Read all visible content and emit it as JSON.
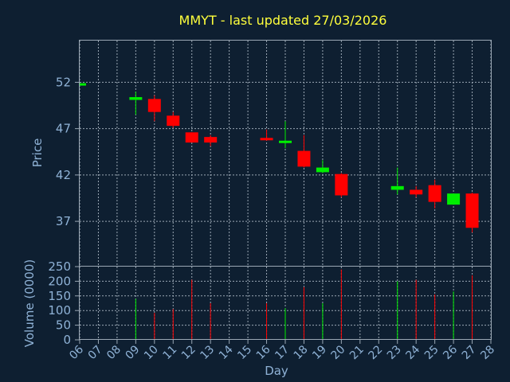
{
  "title": "MMYT - last updated 27/03/2026",
  "colors": {
    "background": "#0e1f31",
    "title": "#ffff3c",
    "axis_text": "#8fb2d6",
    "grid": "#9aa7b4",
    "up": "#00ee00",
    "down": "#ff0000"
  },
  "chart_data": [
    {
      "type": "candlestick",
      "ylabel": "Price",
      "ylim": [
        32.2,
        56.5
      ],
      "yticks": [
        37,
        42,
        47,
        52
      ],
      "grid": true,
      "candles": [
        {
          "day": "06",
          "open": 51.9,
          "high": 51.9,
          "low": 51.9,
          "close": 51.9
        },
        {
          "day": "09",
          "open": 50.1,
          "high": 51.0,
          "low": 48.5,
          "close": 50.4
        },
        {
          "day": "10",
          "open": 50.2,
          "high": 50.6,
          "low": 47.8,
          "close": 48.8
        },
        {
          "day": "11",
          "open": 48.4,
          "high": 48.8,
          "low": 47.1,
          "close": 47.3
        },
        {
          "day": "12",
          "open": 46.6,
          "high": 46.6,
          "low": 45.5,
          "close": 45.5
        },
        {
          "day": "13",
          "open": 46.1,
          "high": 46.3,
          "low": 45.1,
          "close": 45.5
        },
        {
          "day": "16",
          "open": 46.0,
          "high": 46.9,
          "low": 45.7,
          "close": 45.8
        },
        {
          "day": "17",
          "open": 45.6,
          "high": 47.8,
          "low": 44.9,
          "close": 45.7
        },
        {
          "day": "18",
          "open": 44.6,
          "high": 46.3,
          "low": 42.8,
          "close": 42.9
        },
        {
          "day": "19",
          "open": 42.3,
          "high": 43.6,
          "low": 42.2,
          "close": 42.8
        },
        {
          "day": "20",
          "open": 42.1,
          "high": 42.2,
          "low": 39.6,
          "close": 39.8
        },
        {
          "day": "23",
          "open": 40.4,
          "high": 42.8,
          "low": 39.9,
          "close": 40.8
        },
        {
          "day": "24",
          "open": 40.4,
          "high": 40.8,
          "low": 39.6,
          "close": 39.9
        },
        {
          "day": "25",
          "open": 40.9,
          "high": 41.5,
          "low": 38.4,
          "close": 39.1
        },
        {
          "day": "26",
          "open": 38.8,
          "high": 40.0,
          "low": 38.8,
          "close": 40.0
        },
        {
          "day": "27",
          "open": 40.0,
          "high": 40.1,
          "low": 35.8,
          "close": 36.3
        }
      ]
    },
    {
      "type": "bar",
      "ylabel": "Volume (0000)",
      "ylim": [
        0,
        250
      ],
      "yticks": [
        0,
        50,
        100,
        150,
        200,
        250
      ],
      "grid": true,
      "values": [
        {
          "day": "09",
          "value": 140,
          "up": true
        },
        {
          "day": "10",
          "value": 92,
          "up": false
        },
        {
          "day": "11",
          "value": 105,
          "up": false
        },
        {
          "day": "12",
          "value": 205,
          "up": false
        },
        {
          "day": "13",
          "value": 125,
          "up": false
        },
        {
          "day": "16",
          "value": 125,
          "up": false
        },
        {
          "day": "17",
          "value": 108,
          "up": true
        },
        {
          "day": "18",
          "value": 180,
          "up": false
        },
        {
          "day": "19",
          "value": 125,
          "up": true
        },
        {
          "day": "20",
          "value": 240,
          "up": false
        },
        {
          "day": "23",
          "value": 200,
          "up": true
        },
        {
          "day": "24",
          "value": 205,
          "up": false
        },
        {
          "day": "25",
          "value": 155,
          "up": false
        },
        {
          "day": "26",
          "value": 165,
          "up": true
        },
        {
          "day": "27",
          "value": 220,
          "up": false
        }
      ]
    }
  ],
  "x_axis": {
    "label": "Day",
    "ticks": [
      "06",
      "07",
      "08",
      "09",
      "10",
      "11",
      "12",
      "13",
      "14",
      "15",
      "16",
      "17",
      "18",
      "19",
      "20",
      "21",
      "22",
      "23",
      "24",
      "25",
      "26",
      "27",
      "28"
    ]
  }
}
